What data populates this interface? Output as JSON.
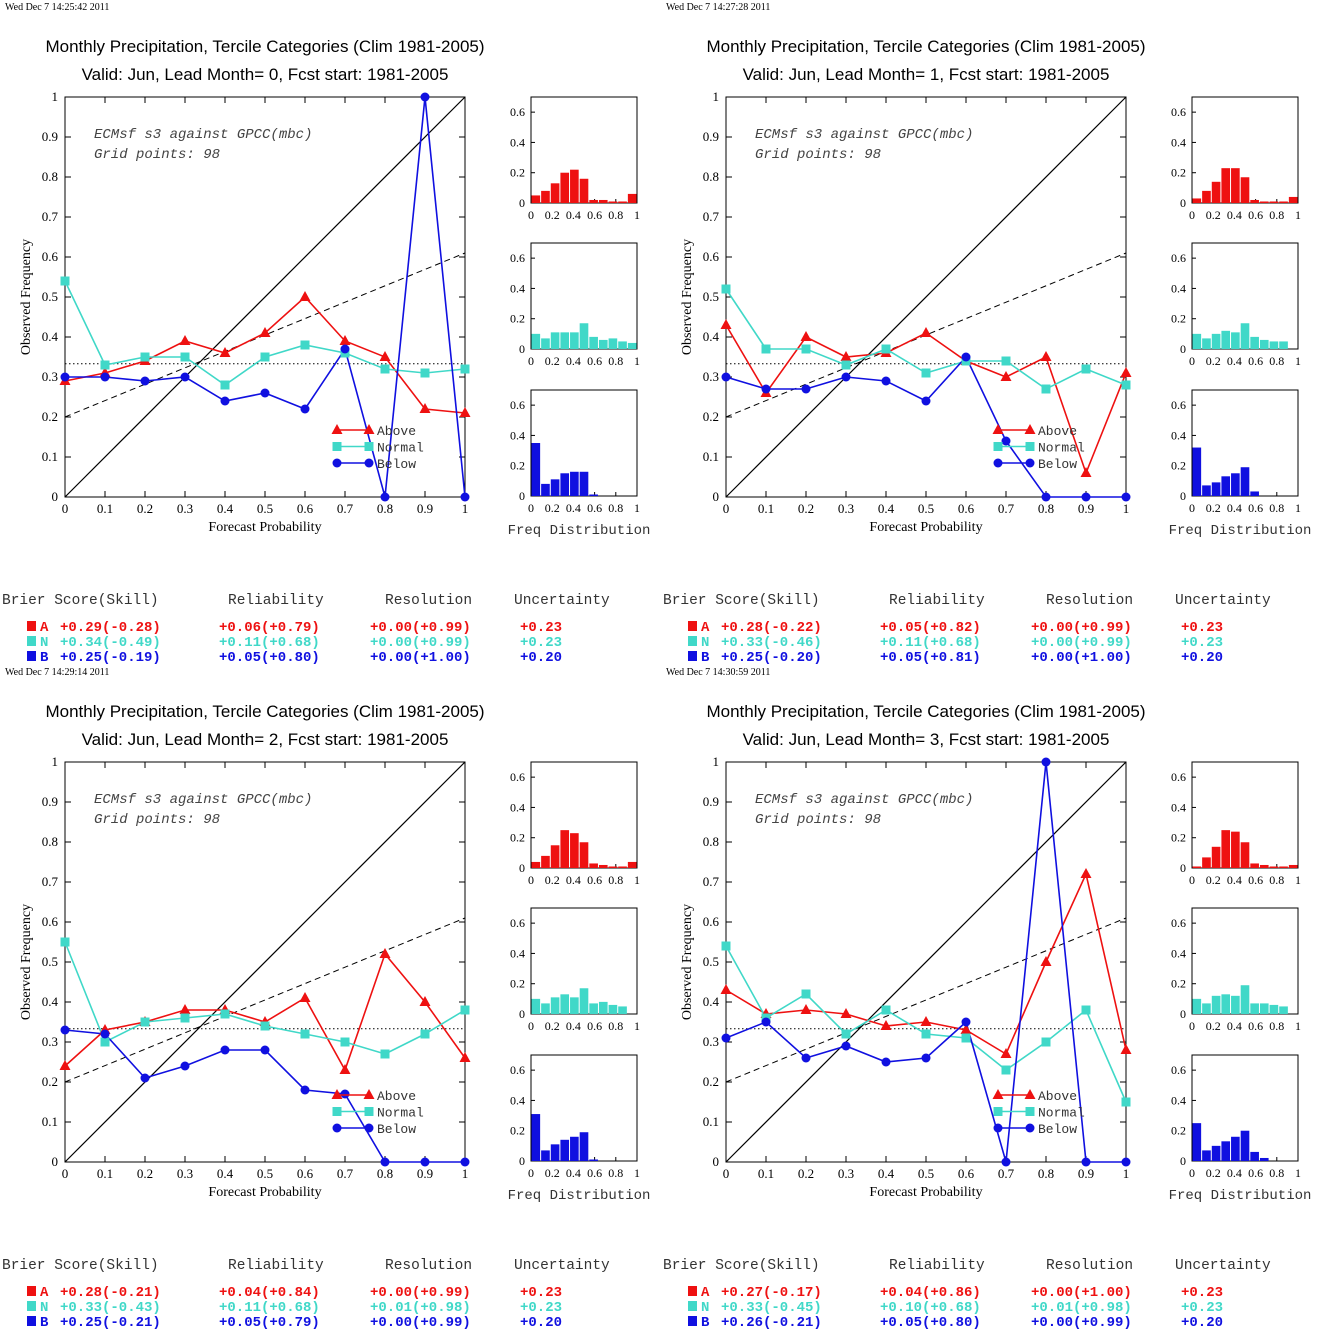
{
  "colors": {
    "above": "#ee1111",
    "normal": "#40d8c8",
    "below": "#1010e0"
  },
  "panel_common": {
    "title": "Monthly Precipitation, Tercile Categories (Clim 1981-2005)",
    "annotation_line1": "ECMsf s3 against GPCC(mbc)",
    "annotation_line2": "Grid points:    98",
    "xlabel": "Forecast Probability",
    "ylabel": "Observed Frequency",
    "freq_label": "Freq Distribution",
    "legend": [
      "Above",
      "Normal",
      "Below"
    ],
    "x_ticks": [
      "0",
      "0.1",
      "0.2",
      "0.3",
      "0.4",
      "0.5",
      "0.6",
      "0.7",
      "0.8",
      "0.9",
      "1"
    ],
    "y_ticks": [
      "0",
      "0.1",
      "0.2",
      "0.3",
      "0.4",
      "0.5",
      "0.6",
      "0.7",
      "0.8",
      "0.9",
      "1"
    ],
    "hist_x_ticks": [
      "0",
      "0.2",
      "0.4",
      "0.6",
      "0.8",
      "1"
    ],
    "hist_y_ticks": [
      "0",
      "0.2",
      "0.4",
      "0.6"
    ],
    "score_headers": [
      "Brier Score(Skill)",
      "Reliability",
      "Resolution",
      "Uncertainty"
    ]
  },
  "chart_data": [
    {
      "type": "line",
      "timestamp": "Wed Dec  7 14:25:42 2011",
      "subtitle": "Valid: Jun, Lead Month= 0, Fcst start: 1981-2005",
      "xlim": [
        0,
        1
      ],
      "ylim": [
        0,
        1
      ],
      "x": [
        0,
        0.1,
        0.2,
        0.3,
        0.4,
        0.5,
        0.6,
        0.7,
        0.8,
        0.9,
        1
      ],
      "series": [
        {
          "name": "Above",
          "values": [
            0.29,
            0.31,
            0.34,
            0.39,
            0.36,
            0.41,
            0.5,
            0.39,
            0.35,
            0.22,
            0.21
          ]
        },
        {
          "name": "Normal",
          "values": [
            0.54,
            0.33,
            0.35,
            0.35,
            0.28,
            0.35,
            0.38,
            0.36,
            0.32,
            0.31,
            0.32
          ]
        },
        {
          "name": "Below",
          "values": [
            0.3,
            0.3,
            0.29,
            0.3,
            0.24,
            0.26,
            0.22,
            0.37,
            0.0,
            1.0,
            0.0
          ]
        }
      ],
      "hist": {
        "above": [
          0.05,
          0.08,
          0.13,
          0.2,
          0.22,
          0.16,
          0.02,
          0.02,
          0.01,
          0.01,
          0.06
        ],
        "normal": [
          0.1,
          0.07,
          0.11,
          0.11,
          0.11,
          0.17,
          0.08,
          0.06,
          0.07,
          0.05,
          0.04
        ],
        "below": [
          0.35,
          0.08,
          0.11,
          0.15,
          0.16,
          0.16,
          0.01,
          0.0,
          0.0,
          0.0,
          0.0
        ]
      },
      "scores": [
        {
          "cat": "A",
          "bs": "+0.29(-0.28)",
          "rel": "+0.06(+0.79)",
          "res": "+0.00(+0.99)",
          "unc": "+0.23"
        },
        {
          "cat": "N",
          "bs": "+0.34(-0.49)",
          "rel": "+0.11(+0.68)",
          "res": "+0.00(+0.99)",
          "unc": "+0.23"
        },
        {
          "cat": "B",
          "bs": "+0.25(-0.19)",
          "rel": "+0.05(+0.80)",
          "res": "+0.00(+1.00)",
          "unc": "+0.20"
        }
      ]
    },
    {
      "type": "line",
      "timestamp": "Wed Dec  7 14:27:28 2011",
      "subtitle": "Valid: Jun, Lead Month= 1, Fcst start: 1981-2005",
      "xlim": [
        0,
        1
      ],
      "ylim": [
        0,
        1
      ],
      "x": [
        0,
        0.1,
        0.2,
        0.3,
        0.4,
        0.5,
        0.6,
        0.7,
        0.8,
        0.9,
        1
      ],
      "series": [
        {
          "name": "Above",
          "values": [
            0.43,
            0.26,
            0.4,
            0.35,
            0.36,
            0.41,
            0.34,
            0.3,
            0.35,
            0.06,
            0.31
          ]
        },
        {
          "name": "Normal",
          "values": [
            0.52,
            0.37,
            0.37,
            0.33,
            0.37,
            0.31,
            0.34,
            0.34,
            0.27,
            0.32,
            0.28
          ]
        },
        {
          "name": "Below",
          "values": [
            0.3,
            0.27,
            0.27,
            0.3,
            0.29,
            0.24,
            0.35,
            0.14,
            0.0,
            0.0,
            0.0
          ]
        }
      ],
      "hist": {
        "above": [
          0.03,
          0.08,
          0.14,
          0.23,
          0.23,
          0.17,
          0.02,
          0.01,
          0.01,
          0.01,
          0.04
        ],
        "normal": [
          0.1,
          0.07,
          0.1,
          0.12,
          0.11,
          0.17,
          0.08,
          0.06,
          0.05,
          0.05,
          0.0
        ],
        "below": [
          0.32,
          0.07,
          0.09,
          0.13,
          0.15,
          0.19,
          0.03,
          0.0,
          0.0,
          0.0,
          0.0
        ]
      },
      "scores": [
        {
          "cat": "A",
          "bs": "+0.28(-0.22)",
          "rel": "+0.05(+0.82)",
          "res": "+0.00(+0.99)",
          "unc": "+0.23"
        },
        {
          "cat": "N",
          "bs": "+0.33(-0.46)",
          "rel": "+0.11(+0.68)",
          "res": "+0.00(+0.99)",
          "unc": "+0.23"
        },
        {
          "cat": "B",
          "bs": "+0.25(-0.20)",
          "rel": "+0.05(+0.81)",
          "res": "+0.00(+1.00)",
          "unc": "+0.20"
        }
      ]
    },
    {
      "type": "line",
      "timestamp": "Wed Dec  7 14:29:14 2011",
      "subtitle": "Valid: Jun, Lead Month= 2, Fcst start: 1981-2005",
      "xlim": [
        0,
        1
      ],
      "ylim": [
        0,
        1
      ],
      "x": [
        0,
        0.1,
        0.2,
        0.3,
        0.4,
        0.5,
        0.6,
        0.7,
        0.8,
        0.9,
        1
      ],
      "series": [
        {
          "name": "Above",
          "values": [
            0.24,
            0.33,
            0.35,
            0.38,
            0.38,
            0.35,
            0.41,
            0.23,
            0.52,
            0.4,
            0.26
          ]
        },
        {
          "name": "Normal",
          "values": [
            0.55,
            0.3,
            0.35,
            0.36,
            0.37,
            0.34,
            0.32,
            0.3,
            0.27,
            0.32,
            0.38
          ]
        },
        {
          "name": "Below",
          "values": [
            0.33,
            0.32,
            0.21,
            0.24,
            0.28,
            0.28,
            0.18,
            0.17,
            0.0,
            0.0,
            0.0
          ]
        }
      ],
      "hist": {
        "above": [
          0.04,
          0.08,
          0.15,
          0.25,
          0.23,
          0.17,
          0.03,
          0.02,
          0.01,
          0.01,
          0.04
        ],
        "normal": [
          0.1,
          0.07,
          0.11,
          0.13,
          0.11,
          0.17,
          0.07,
          0.08,
          0.06,
          0.05,
          0.0
        ],
        "below": [
          0.31,
          0.07,
          0.11,
          0.14,
          0.16,
          0.19,
          0.01,
          0.0,
          0.0,
          0.0,
          0.0
        ]
      },
      "scores": [
        {
          "cat": "A",
          "bs": "+0.28(-0.21)",
          "rel": "+0.04(+0.84)",
          "res": "+0.00(+0.99)",
          "unc": "+0.23"
        },
        {
          "cat": "N",
          "bs": "+0.33(-0.43)",
          "rel": "+0.11(+0.68)",
          "res": "+0.01(+0.98)",
          "unc": "+0.23"
        },
        {
          "cat": "B",
          "bs": "+0.25(-0.21)",
          "rel": "+0.05(+0.79)",
          "res": "+0.00(+0.99)",
          "unc": "+0.20"
        }
      ]
    },
    {
      "type": "line",
      "timestamp": "Wed Dec  7 14:30:59 2011",
      "subtitle": "Valid: Jun, Lead Month= 3, Fcst start: 1981-2005",
      "xlim": [
        0,
        1
      ],
      "ylim": [
        0,
        1
      ],
      "x": [
        0,
        0.1,
        0.2,
        0.3,
        0.4,
        0.5,
        0.6,
        0.7,
        0.8,
        0.9,
        1
      ],
      "series": [
        {
          "name": "Above",
          "values": [
            0.43,
            0.37,
            0.38,
            0.37,
            0.34,
            0.35,
            0.33,
            0.27,
            0.5,
            0.72,
            0.28
          ]
        },
        {
          "name": "Normal",
          "values": [
            0.54,
            0.36,
            0.42,
            0.32,
            0.38,
            0.32,
            0.31,
            0.23,
            0.3,
            0.38,
            0.15
          ]
        },
        {
          "name": "Below",
          "values": [
            0.31,
            0.35,
            0.26,
            0.29,
            0.25,
            0.26,
            0.35,
            0.0,
            1.0,
            0.0,
            0.0
          ]
        }
      ],
      "hist": {
        "above": [
          0.01,
          0.07,
          0.14,
          0.25,
          0.24,
          0.17,
          0.03,
          0.02,
          0.01,
          0.01,
          0.02
        ],
        "normal": [
          0.1,
          0.07,
          0.12,
          0.13,
          0.12,
          0.19,
          0.07,
          0.07,
          0.06,
          0.05,
          0.0
        ],
        "below": [
          0.25,
          0.07,
          0.1,
          0.13,
          0.16,
          0.2,
          0.06,
          0.02,
          0.0,
          0.0,
          0.0
        ]
      },
      "scores": [
        {
          "cat": "A",
          "bs": "+0.27(-0.17)",
          "rel": "+0.04(+0.86)",
          "res": "+0.00(+1.00)",
          "unc": "+0.23"
        },
        {
          "cat": "N",
          "bs": "+0.33(-0.45)",
          "rel": "+0.10(+0.68)",
          "res": "+0.01(+0.98)",
          "unc": "+0.23"
        },
        {
          "cat": "B",
          "bs": "+0.26(-0.21)",
          "rel": "+0.05(+0.80)",
          "res": "+0.00(+0.99)",
          "unc": "+0.20"
        }
      ]
    }
  ]
}
